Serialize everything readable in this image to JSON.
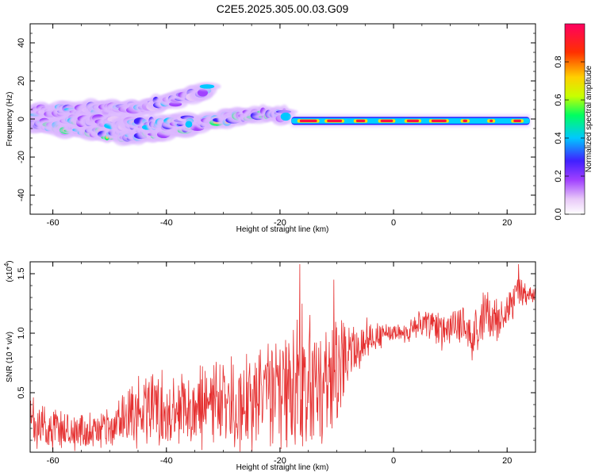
{
  "chart_data": [
    {
      "type": "heatmap",
      "title": "C2E5.2025.305.00.03.G09",
      "xlabel": "Height of straight line (km)",
      "ylabel": "Frequency (Hz)",
      "xlim": [
        -64,
        25
      ],
      "ylim": [
        -50,
        50
      ],
      "xticks": [
        -60,
        -40,
        -20,
        0,
        20
      ],
      "yticks": [
        -40,
        -20,
        0,
        20,
        40
      ],
      "xtick_labels": [
        "-60",
        "-40",
        "-20",
        "0",
        "20"
      ],
      "ytick_labels": [
        "-40",
        "-20",
        "0",
        "20",
        "40"
      ],
      "colorbar": {
        "label": "Normalized spectral amplitude",
        "range": [
          0,
          1
        ],
        "ticks": [
          0.0,
          0.2,
          0.4,
          0.6,
          0.8
        ],
        "tick_labels": [
          "0.0",
          "0.2",
          "0.4",
          "0.6",
          "0.8"
        ],
        "colors": [
          "#ffffff",
          "#e8c8f8",
          "#a040ff",
          "#4020ff",
          "#00c8ff",
          "#00ff60",
          "#c8ff00",
          "#ffd000",
          "#ff3000",
          "#ff0060"
        ]
      },
      "features": [
        {
          "name": "upper diagonal streak",
          "x": [
            -64,
            -54,
            -46,
            -38,
            -33
          ],
          "y": [
            4,
            5,
            6,
            10,
            16
          ],
          "amplitude": 0.3
        },
        {
          "name": "lower diagonal streak",
          "x": [
            -64,
            -56,
            -48,
            -40,
            -32,
            -24,
            -19
          ],
          "y": [
            -2,
            -5,
            -9,
            -6,
            -1,
            3,
            2
          ],
          "amplitude": 0.4
        },
        {
          "name": "middle band",
          "x": [
            -58,
            -50,
            -42,
            -36
          ],
          "y": [
            0,
            -2,
            -3,
            -1
          ],
          "amplitude": 0.35
        },
        {
          "name": "tone at 0 Hz",
          "x": [
            -18,
            24
          ],
          "y": [
            -1,
            -1
          ],
          "amplitude": 0.95
        }
      ]
    },
    {
      "type": "line",
      "xlabel": "Height of straight line (km)",
      "ylabel": "SNR (10 * v/v)",
      "multiplier_label": "(x10",
      "multiplier_exp": "4",
      "multiplier_close": ")",
      "xlim": [
        -64,
        25
      ],
      "ylim": [
        0,
        1.6
      ],
      "xticks": [
        -60,
        -40,
        -20,
        0,
        20
      ],
      "yticks": [
        0.5,
        1.0,
        1.5
      ],
      "xtick_labels": [
        "-60",
        "-40",
        "-20",
        "0",
        "20"
      ],
      "ytick_labels": [
        "0.5",
        "1.0",
        "1.5"
      ],
      "color": "#e53030",
      "anchors": {
        "x": [
          -64,
          -60,
          -55,
          -50,
          -47,
          -44,
          -40,
          -35,
          -30,
          -25,
          -22,
          -19,
          -16,
          -14,
          -12,
          -10,
          -8,
          -6,
          -4,
          -2,
          0,
          2,
          4,
          6,
          8,
          10,
          12,
          14,
          16,
          18,
          20,
          22,
          24,
          25
        ],
        "mean": [
          0.22,
          0.2,
          0.18,
          0.18,
          0.3,
          0.36,
          0.35,
          0.36,
          0.38,
          0.42,
          0.52,
          0.55,
          0.62,
          0.58,
          0.6,
          0.72,
          0.85,
          0.9,
          0.98,
          0.98,
          1.0,
          1.0,
          1.05,
          1.1,
          1.02,
          1.05,
          1.1,
          0.95,
          1.15,
          1.12,
          1.2,
          1.32,
          1.3,
          1.32
        ],
        "spread": [
          0.22,
          0.2,
          0.16,
          0.16,
          0.26,
          0.3,
          0.3,
          0.3,
          0.34,
          0.4,
          0.44,
          0.5,
          0.55,
          0.5,
          0.5,
          0.4,
          0.28,
          0.18,
          0.14,
          0.1,
          0.06,
          0.08,
          0.12,
          0.14,
          0.16,
          0.14,
          0.18,
          0.22,
          0.2,
          0.18,
          0.16,
          0.14,
          0.1,
          0.1
        ]
      },
      "peaks": [
        {
          "x": -16.5,
          "y": 1.58
        },
        {
          "x": -16,
          "y": 0.05
        },
        {
          "x": -10.5,
          "y": 1.45
        },
        {
          "x": 22,
          "y": 1.58
        }
      ]
    }
  ]
}
